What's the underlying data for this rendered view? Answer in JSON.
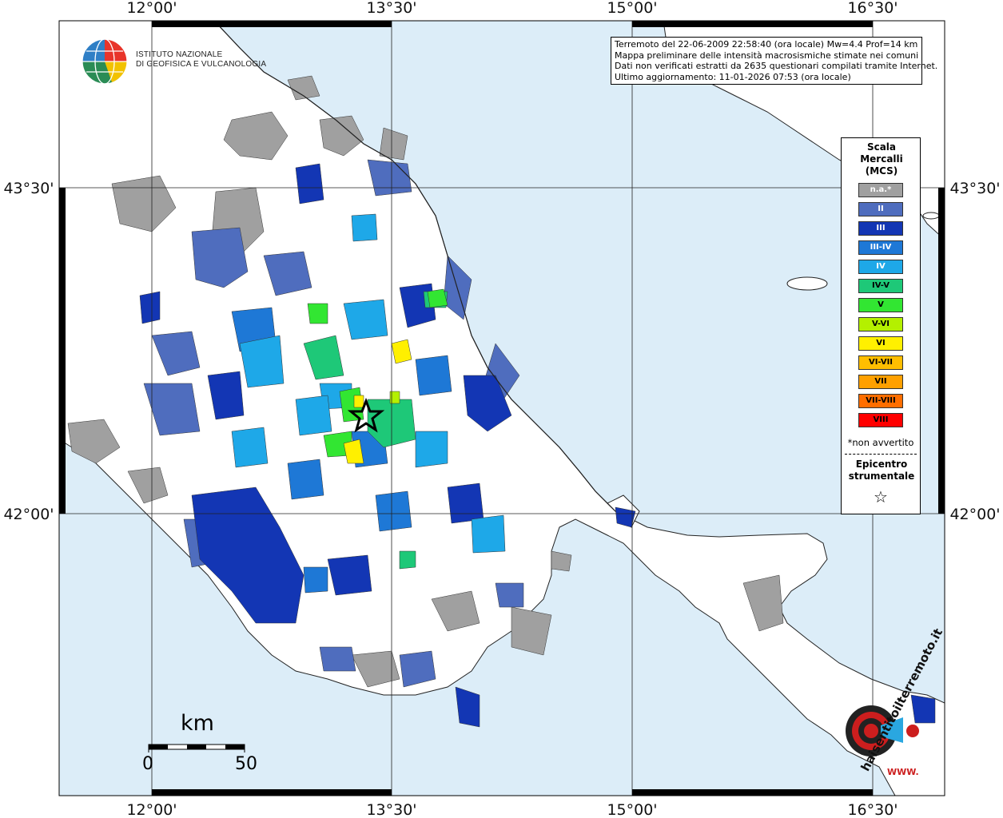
{
  "map": {
    "coord_labels_top": [
      "12°00'",
      "13°30'",
      "15°00'",
      "16°30'"
    ],
    "coord_labels_bottom": [
      "12°00'",
      "13°30'",
      "15°00'",
      "16°30'"
    ],
    "coord_labels_left": [
      "43°30'",
      "42°00'"
    ],
    "coord_labels_right": [
      "43°30'",
      "42°00'"
    ],
    "colors": {
      "sea": "#dcedf8",
      "land": "#ffffff",
      "na": "#a0a0a0",
      "II": "#4f6dbe",
      "III": "#1336b4",
      "III-IV": "#1e78d6",
      "IV": "#1ea8e8",
      "IV-V": "#1ec878",
      "V": "#32e632",
      "V-VI": "#b4f000",
      "VI": "#fff000",
      "VI-VII": "#ffbe00",
      "VII": "#ffa000",
      "VII-VIII": "#ff6e00",
      "VIII": "#ff0000"
    }
  },
  "info": {
    "line1": "Terremoto del 22-06-2009 22:58:40 (ora locale) Mw=4.4 Prof=14 km",
    "line2": "Mappa preliminare delle intensità macrosismiche stimate nei comuni",
    "line3": "Dati non verificati estratti da 2635 questionari compilati tramite Internet.",
    "line4": "Ultimo aggiornamento: 11-01-2026 07:53 (ora locale)"
  },
  "legend": {
    "title": "Scala Mercalli (MCS)",
    "items": [
      {
        "label": "n.a.*",
        "key": "na"
      },
      {
        "label": "II",
        "key": "II"
      },
      {
        "label": "III",
        "key": "III"
      },
      {
        "label": "III-IV",
        "key": "III-IV"
      },
      {
        "label": "IV",
        "key": "IV"
      },
      {
        "label": "IV-V",
        "key": "IV-V"
      },
      {
        "label": "V",
        "key": "V"
      },
      {
        "label": "V-VI",
        "key": "V-VI"
      },
      {
        "label": "VI",
        "key": "VI"
      },
      {
        "label": "VI-VII",
        "key": "VI-VII"
      },
      {
        "label": "VII",
        "key": "VII"
      },
      {
        "label": "VII-VIII",
        "key": "VII-VIII"
      },
      {
        "label": "VIII",
        "key": "VIII"
      }
    ],
    "non_avvertito": "*non avvertito",
    "epicentro": "Epicentro strumentale",
    "star_symbol": "☆"
  },
  "logo": {
    "line1": "ISTITUTO NAZIONALE",
    "line2": "DI GEOFISICA E VULCANOLOGIA"
  },
  "scale": {
    "unit": "km",
    "start": "0",
    "end": "50"
  },
  "badge": {
    "text": "haisentitoilterremoto.it",
    "www": "WWW."
  }
}
